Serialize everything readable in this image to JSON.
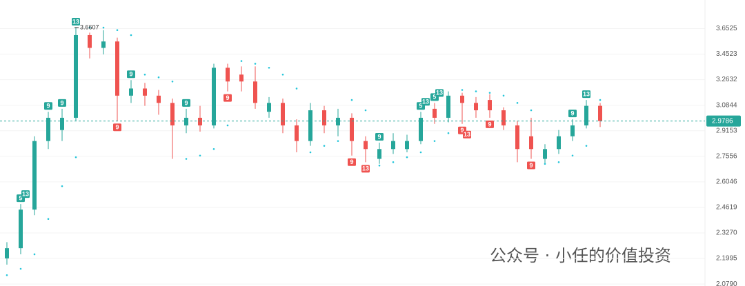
{
  "chart_data": {
    "type": "candlestick",
    "open": [
      2.2,
      2.25,
      2.45,
      2.85,
      2.92,
      3.0,
      3.6,
      3.5,
      3.55,
      3.15,
      3.2,
      3.15,
      3.1,
      2.95,
      3.0,
      2.95,
      3.35,
      3.3,
      3.25,
      3.04,
      3.1,
      2.95,
      2.85,
      3.05,
      2.95,
      3.0,
      2.85,
      2.74,
      2.8,
      2.8,
      2.85,
      3.06,
      3.0,
      3.15,
      3.1,
      3.12,
      3.05,
      2.95,
      2.88,
      2.74,
      2.8,
      2.88,
      2.95,
      3.08
    ],
    "high": [
      2.28,
      2.48,
      2.88,
      3.04,
      3.06,
      3.6607,
      3.62,
      3.64,
      3.58,
      3.26,
      3.24,
      3.19,
      3.13,
      3.06,
      3.08,
      3.38,
      3.38,
      3.36,
      3.36,
      3.14,
      3.13,
      2.99,
      3.1,
      3.08,
      3.06,
      3.03,
      2.88,
      2.84,
      2.9,
      2.89,
      3.04,
      3.1,
      3.18,
      3.17,
      3.14,
      3.16,
      3.07,
      2.98,
      3.0,
      2.83,
      2.92,
      2.99,
      3.12,
      3.1
    ],
    "low": [
      2.17,
      2.22,
      2.42,
      2.8,
      2.85,
      2.98,
      3.42,
      3.45,
      2.98,
      3.1,
      3.08,
      3.02,
      2.74,
      2.9,
      2.91,
      2.93,
      3.18,
      3.18,
      3.06,
      3.0,
      2.9,
      2.78,
      2.82,
      2.9,
      2.88,
      2.76,
      2.72,
      2.71,
      2.77,
      2.78,
      2.83,
      2.96,
      2.97,
      2.96,
      3.0,
      3.0,
      2.92,
      2.72,
      2.74,
      2.71,
      2.77,
      2.85,
      2.93,
      2.94
    ],
    "close": [
      2.25,
      2.45,
      2.85,
      3.0,
      3.0,
      3.6,
      3.5,
      3.55,
      3.15,
      3.2,
      3.15,
      3.1,
      2.95,
      3.0,
      2.95,
      3.35,
      3.25,
      3.25,
      3.1,
      3.1,
      2.95,
      2.85,
      3.05,
      2.95,
      3.0,
      2.85,
      2.8,
      2.8,
      2.85,
      2.85,
      3.0,
      3.0,
      3.15,
      3.1,
      3.05,
      3.05,
      2.95,
      2.8,
      2.8,
      2.8,
      2.88,
      2.95,
      3.08,
      2.9786
    ],
    "sar": [
      2.12,
      2.15,
      2.22,
      2.4,
      2.58,
      2.75,
      3.66,
      3.66,
      3.64,
      3.6,
      3.3,
      3.28,
      3.25,
      2.74,
      2.76,
      2.8,
      2.95,
      3.4,
      3.38,
      3.35,
      3.3,
      3.2,
      2.78,
      2.82,
      2.85,
      3.12,
      3.05,
      2.7,
      2.72,
      2.75,
      2.78,
      2.85,
      2.9,
      3.19,
      3.18,
      3.17,
      3.15,
      3.1,
      3.05,
      2.71,
      2.72,
      2.76,
      2.82,
      3.12
    ],
    "up_color": "#26a69a",
    "down_color": "#ef5350",
    "sar_color": "#26c6da",
    "td_markers": [
      {
        "index": 1,
        "text": "9",
        "side": "up"
      },
      {
        "index": 1,
        "text": "13",
        "side": "up"
      },
      {
        "index": 3,
        "text": "9",
        "side": "up"
      },
      {
        "index": 4,
        "text": "9",
        "side": "up"
      },
      {
        "index": 5,
        "text": "13",
        "side": "up"
      },
      {
        "index": 8,
        "text": "9",
        "side": "down"
      },
      {
        "index": 9,
        "text": "9",
        "side": "up"
      },
      {
        "index": 13,
        "text": "9",
        "side": "up"
      },
      {
        "index": 16,
        "text": "9",
        "side": "down"
      },
      {
        "index": 25,
        "text": "9",
        "side": "down"
      },
      {
        "index": 26,
        "text": "13",
        "side": "down"
      },
      {
        "index": 27,
        "text": "9",
        "side": "up"
      },
      {
        "index": 30,
        "text": "9",
        "side": "up"
      },
      {
        "index": 30,
        "text": "13",
        "side": "up"
      },
      {
        "index": 31,
        "text": "9",
        "side": "up"
      },
      {
        "index": 31,
        "text": "13",
        "side": "up"
      },
      {
        "index": 33,
        "text": "9",
        "side": "down"
      },
      {
        "index": 33,
        "text": "13",
        "side": "down"
      },
      {
        "index": 35,
        "text": "9",
        "side": "down"
      },
      {
        "index": 38,
        "text": "9",
        "side": "down"
      },
      {
        "index": 41,
        "text": "9",
        "side": "up"
      },
      {
        "index": 42,
        "text": "13",
        "side": "up"
      }
    ],
    "ylim": [
      2.07,
      3.89
    ],
    "log_scale": true,
    "grid": true,
    "yticks": [
      3.6525,
      3.4523,
      3.2632,
      3.0844,
      2.9153,
      2.7556,
      2.6046,
      2.4619,
      {
        "value": 2.327,
        "label": "2.3270"
      },
      2.1995,
      {
        "value": 2.079,
        "label": "2.0790"
      }
    ],
    "watermark": "公众号 · 小任的价值投资"
  }
}
